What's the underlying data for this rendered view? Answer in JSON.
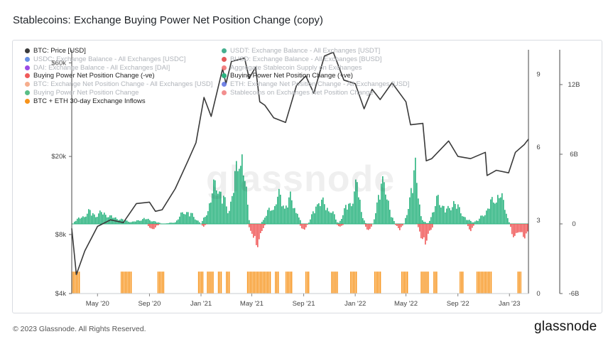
{
  "title": "Stablecoins: Exchange Buying Power Net Position Change (copy)",
  "footer": "© 2023 Glassnode. All Rights Reserved.",
  "brand": "glassnode",
  "watermark": "glassnode",
  "legend": {
    "left": [
      {
        "label": "BTC: Price [USD]",
        "color": "#3a3a3a",
        "active": true
      },
      {
        "label": "USDC: Exchange Balance - All Exchanges [USDC]",
        "color": "#4c7be0",
        "active": false
      },
      {
        "label": "DAI: Exchange Balance - All Exchanges [DAI]",
        "color": "#8a2be2",
        "active": false
      },
      {
        "label": "Buying Power Net Position Change (-ve)",
        "color": "#f05a5a",
        "active": true
      },
      {
        "label": "BTC: Exchange Net Position Change - All Exchanges [USD]",
        "color": "#f4a07a",
        "active": false
      },
      {
        "label": "Buying Power Net Position Change",
        "color": "#3cb371",
        "active": false
      },
      {
        "label": "BTC + ETH 30-day Exchange Inflows",
        "color": "#f7931a",
        "active": true
      }
    ],
    "right": [
      {
        "label": "USDT: Exchange Balance - All Exchanges [USDT]",
        "color": "#26a17b",
        "active": false
      },
      {
        "label": "BUSD: Exchange Balance - All Exchanges [BUSD]",
        "color": "#e03b3b",
        "active": false
      },
      {
        "label": "Aggregate Stablecoin Supply on Exchanges",
        "color": "#f06a6a",
        "active": false
      },
      {
        "label": "Buying Power Net Position Change (+ve)",
        "color": "#2ab37f",
        "active": true
      },
      {
        "label": "ETH: Exchange Net Position Change - All Exchanges [USD]",
        "color": "#5b6fe0",
        "active": false
      },
      {
        "label": "Stablecoins on Exchanges Net Position Change",
        "color": "#f07a7a",
        "active": false
      }
    ]
  },
  "chart_data": {
    "type": "line",
    "x_ticks": [
      "May '20",
      "Sep '20",
      "Jan '21",
      "May '21",
      "Sep '21",
      "Jan '22",
      "May '22",
      "Sep '22",
      "Jan '23"
    ],
    "x_range": [
      "2020-03-01",
      "2023-02-15"
    ],
    "y_left": {
      "label": "",
      "scale": "log",
      "ticks": [
        "$4k",
        "$8k",
        "$20k",
        "$60k"
      ],
      "range": [
        4000,
        70000
      ]
    },
    "y_mid": {
      "ticks": [
        "0",
        "3",
        "6",
        "9"
      ],
      "range": [
        0,
        10
      ]
    },
    "y_right": {
      "ticks": [
        "-6B",
        "0",
        "6B",
        "12B"
      ],
      "range": [
        -6,
        15
      ]
    },
    "series": [
      {
        "name": "BTC: Price [USD]",
        "color": "#3a3a3a",
        "points": [
          [
            "2020-03-01",
            8600
          ],
          [
            "2020-03-12",
            5000
          ],
          [
            "2020-04-01",
            6600
          ],
          [
            "2020-05-01",
            8800
          ],
          [
            "2020-06-01",
            9500
          ],
          [
            "2020-07-01",
            9200
          ],
          [
            "2020-08-01",
            11500
          ],
          [
            "2020-09-01",
            11700
          ],
          [
            "2020-09-15",
            10500
          ],
          [
            "2020-10-01",
            10700
          ],
          [
            "2020-11-01",
            13700
          ],
          [
            "2020-12-01",
            19000
          ],
          [
            "2020-12-20",
            23500
          ],
          [
            "2021-01-08",
            40000
          ],
          [
            "2021-01-25",
            32000
          ],
          [
            "2021-02-21",
            56000
          ],
          [
            "2021-03-01",
            47000
          ],
          [
            "2021-03-14",
            61000
          ],
          [
            "2021-04-14",
            63500
          ],
          [
            "2021-04-25",
            50000
          ],
          [
            "2021-05-10",
            57000
          ],
          [
            "2021-05-20",
            38000
          ],
          [
            "2021-06-01",
            36500
          ],
          [
            "2021-06-22",
            31500
          ],
          [
            "2021-07-20",
            29800
          ],
          [
            "2021-08-15",
            46000
          ],
          [
            "2021-09-06",
            51500
          ],
          [
            "2021-09-25",
            42000
          ],
          [
            "2021-10-20",
            65000
          ],
          [
            "2021-11-10",
            68000
          ],
          [
            "2021-12-05",
            49000
          ],
          [
            "2022-01-01",
            47000
          ],
          [
            "2022-01-22",
            35000
          ],
          [
            "2022-02-10",
            44000
          ],
          [
            "2022-03-01",
            39000
          ],
          [
            "2022-03-29",
            47500
          ],
          [
            "2022-05-01",
            38000
          ],
          [
            "2022-05-12",
            29000
          ],
          [
            "2022-06-10",
            29500
          ],
          [
            "2022-06-18",
            19000
          ],
          [
            "2022-07-01",
            19500
          ],
          [
            "2022-08-10",
            24000
          ],
          [
            "2022-09-01",
            20000
          ],
          [
            "2022-10-01",
            19500
          ],
          [
            "2022-11-05",
            21000
          ],
          [
            "2022-11-09",
            16000
          ],
          [
            "2022-12-01",
            17000
          ],
          [
            "2022-12-30",
            16500
          ],
          [
            "2023-01-15",
            21000
          ],
          [
            "2023-02-05",
            23000
          ],
          [
            "2023-02-15",
            24500
          ]
        ]
      },
      {
        "name": "Buying Power Net Position Change (+ve)",
        "color": "#2ab37f",
        "points": [
          [
            "2020-03-05",
            0.3
          ],
          [
            "2020-03-25",
            0.8
          ],
          [
            "2020-04-10",
            1.4
          ],
          [
            "2020-04-25",
            1.0
          ],
          [
            "2020-05-10",
            1.3
          ],
          [
            "2020-06-01",
            0.8
          ],
          [
            "2020-06-25",
            0.5
          ],
          [
            "2020-07-20",
            0.2
          ],
          [
            "2020-08-20",
            0.6
          ],
          [
            "2020-09-10",
            0.3
          ],
          [
            "2020-10-01",
            0.0
          ],
          [
            "2020-11-01",
            0.2
          ],
          [
            "2020-11-20",
            1.5
          ],
          [
            "2020-12-10",
            1.0
          ],
          [
            "2020-12-31",
            0.0
          ],
          [
            "2021-01-15",
            1.5
          ],
          [
            "2021-02-05",
            5.0
          ],
          [
            "2021-02-20",
            3.0
          ],
          [
            "2021-03-05",
            1.5
          ],
          [
            "2021-03-20",
            4.5
          ],
          [
            "2021-04-05",
            9.2
          ],
          [
            "2021-04-15",
            4.0
          ],
          [
            "2021-04-25",
            0.0
          ],
          [
            "2021-05-20",
            0.0
          ],
          [
            "2021-06-05",
            1.2
          ],
          [
            "2021-06-20",
            2.0
          ],
          [
            "2021-07-01",
            3.2
          ],
          [
            "2021-07-15",
            2.2
          ],
          [
            "2021-07-30",
            2.8
          ],
          [
            "2021-08-15",
            1.5
          ],
          [
            "2021-08-25",
            0.0
          ],
          [
            "2021-09-10",
            0.0
          ],
          [
            "2021-09-25",
            1.5
          ],
          [
            "2021-10-05",
            3.0
          ],
          [
            "2021-10-20",
            2.0
          ],
          [
            "2021-11-05",
            1.5
          ],
          [
            "2021-11-20",
            0.0
          ],
          [
            "2021-12-01",
            1.0
          ],
          [
            "2021-12-10",
            2.0
          ],
          [
            "2021-12-20",
            2.5
          ],
          [
            "2022-01-05",
            4.5
          ],
          [
            "2022-01-15",
            1.2
          ],
          [
            "2022-01-25",
            0.0
          ],
          [
            "2022-02-10",
            0.0
          ],
          [
            "2022-02-20",
            2.0
          ],
          [
            "2022-03-01",
            4.0
          ],
          [
            "2022-03-10",
            6.0
          ],
          [
            "2022-03-15",
            3.0
          ],
          [
            "2022-03-25",
            1.0
          ],
          [
            "2022-04-05",
            0.0
          ],
          [
            "2022-04-25",
            0.0
          ],
          [
            "2022-05-10",
            3.0
          ],
          [
            "2022-05-22",
            6.5
          ],
          [
            "2022-05-30",
            3.5
          ],
          [
            "2022-06-05",
            0.5
          ],
          [
            "2022-06-20",
            0.0
          ],
          [
            "2022-07-05",
            1.5
          ],
          [
            "2022-07-15",
            3.2
          ],
          [
            "2022-07-25",
            2.0
          ],
          [
            "2022-08-05",
            1.5
          ],
          [
            "2022-08-20",
            2.5
          ],
          [
            "2022-09-05",
            1.5
          ],
          [
            "2022-09-20",
            0.5
          ],
          [
            "2022-10-05",
            0.2
          ],
          [
            "2022-10-20",
            0.5
          ],
          [
            "2022-11-05",
            1.5
          ],
          [
            "2022-11-20",
            2.5
          ],
          [
            "2022-12-05",
            3.5
          ],
          [
            "2022-12-20",
            2.0
          ],
          [
            "2022-12-31",
            0.0
          ],
          [
            "2023-02-15",
            0.0
          ]
        ]
      },
      {
        "name": "Buying Power Net Position Change (-ve)",
        "color": "#f05a5a",
        "points": [
          [
            "2020-03-01",
            0.0
          ],
          [
            "2020-08-25",
            0.0
          ],
          [
            "2020-09-05",
            -0.8
          ],
          [
            "2020-09-15",
            -0.3
          ],
          [
            "2020-09-25",
            0.0
          ],
          [
            "2020-12-31",
            0.0
          ],
          [
            "2021-01-05",
            -0.3
          ],
          [
            "2021-01-15",
            0.0
          ],
          [
            "2021-04-20",
            0.0
          ],
          [
            "2021-05-01",
            -1.5
          ],
          [
            "2021-05-12",
            -2.2
          ],
          [
            "2021-05-22",
            -1.2
          ],
          [
            "2021-06-01",
            0.0
          ],
          [
            "2021-08-20",
            0.0
          ],
          [
            "2021-09-01",
            -0.8
          ],
          [
            "2021-09-10",
            0.0
          ],
          [
            "2021-11-15",
            0.0
          ],
          [
            "2021-11-25",
            -0.4
          ],
          [
            "2021-12-05",
            0.0
          ],
          [
            "2022-01-20",
            0.0
          ],
          [
            "2022-02-01",
            -0.8
          ],
          [
            "2022-02-10",
            0.0
          ],
          [
            "2022-04-01",
            0.0
          ],
          [
            "2022-04-15",
            -0.6
          ],
          [
            "2022-04-25",
            0.0
          ],
          [
            "2022-05-25",
            0.0
          ],
          [
            "2022-06-05",
            -1.5
          ],
          [
            "2022-06-15",
            -2.0
          ],
          [
            "2022-06-25",
            -1.0
          ],
          [
            "2022-07-05",
            0.0
          ],
          [
            "2022-09-20",
            0.0
          ],
          [
            "2022-10-01",
            -0.8
          ],
          [
            "2022-10-10",
            0.0
          ],
          [
            "2022-12-31",
            0.0
          ],
          [
            "2023-01-05",
            -1.0
          ],
          [
            "2023-01-15",
            -1.4
          ],
          [
            "2023-01-25",
            -1.0
          ],
          [
            "2023-02-05",
            -1.3
          ],
          [
            "2023-02-15",
            -0.9
          ]
        ]
      },
      {
        "name": "BTC + ETH 30-day Exchange Inflows",
        "color": "#f7931a",
        "intervals": [
          [
            "2020-03-01",
            "2020-03-20"
          ],
          [
            "2020-06-25",
            "2020-07-20"
          ],
          [
            "2020-09-20",
            "2020-10-05"
          ],
          [
            "2020-12-25",
            "2021-01-05"
          ],
          [
            "2021-01-15",
            "2021-01-30"
          ],
          [
            "2021-02-10",
            "2021-02-20"
          ],
          [
            "2021-03-01",
            "2021-03-10"
          ],
          [
            "2021-04-20",
            "2021-06-15"
          ],
          [
            "2021-06-25",
            "2021-07-05"
          ],
          [
            "2021-07-20",
            "2021-08-05"
          ],
          [
            "2021-09-05",
            "2021-09-15"
          ],
          [
            "2021-11-05",
            "2021-11-20"
          ],
          [
            "2021-12-20",
            "2022-01-05"
          ],
          [
            "2022-02-15",
            "2022-03-01"
          ],
          [
            "2022-04-20",
            "2022-05-05"
          ],
          [
            "2022-06-05",
            "2022-06-25"
          ],
          [
            "2022-07-05",
            "2022-07-15"
          ],
          [
            "2022-09-05",
            "2022-09-15"
          ],
          [
            "2022-10-15",
            "2022-11-20"
          ],
          [
            "2023-01-20",
            "2023-01-30"
          ]
        ]
      }
    ]
  }
}
